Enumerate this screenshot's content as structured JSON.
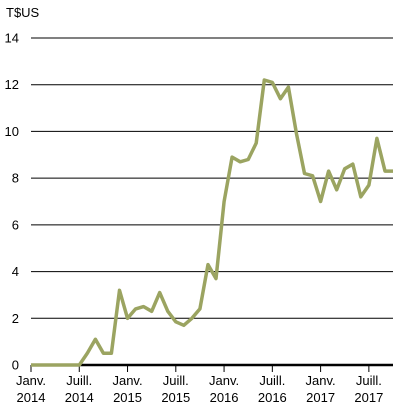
{
  "chart_data": {
    "type": "line",
    "ylabel": "T$US",
    "ylim": [
      0,
      14
    ],
    "yticks": [
      0,
      2,
      4,
      6,
      8,
      10,
      12,
      14
    ],
    "xlim": [
      0,
      45
    ],
    "x_ticks": [
      {
        "x": 0,
        "line1": "Janv.",
        "line2": "2014"
      },
      {
        "x": 6,
        "line1": "Juill.",
        "line2": "2014"
      },
      {
        "x": 12,
        "line1": "Janv.",
        "line2": "2015"
      },
      {
        "x": 18,
        "line1": "Juill.",
        "line2": "2015"
      },
      {
        "x": 24,
        "line1": "Janv.",
        "line2": "2016"
      },
      {
        "x": 30,
        "line1": "Juill.",
        "line2": "2016"
      },
      {
        "x": 36,
        "line1": "Janv.",
        "line2": "2017"
      },
      {
        "x": 42,
        "line1": "Juill.",
        "line2": "2017"
      }
    ],
    "grid": true,
    "line_color": "#9ba461",
    "series": [
      {
        "x": [
          0,
          1,
          2,
          3,
          4,
          5,
          6,
          7,
          8,
          9,
          10,
          11,
          12,
          13,
          14,
          15,
          16,
          17,
          18,
          19,
          20,
          21,
          22,
          23,
          24,
          25,
          26,
          27,
          28,
          29,
          30,
          31,
          32,
          33,
          34,
          35,
          36,
          37,
          38,
          39,
          40,
          41,
          42,
          43,
          44,
          45
        ],
        "values": [
          0,
          0,
          0,
          0,
          0,
          0,
          0,
          0.5,
          1.1,
          0.5,
          0.5,
          3.2,
          2.0,
          2.4,
          2.5,
          2.3,
          3.1,
          2.3,
          1.85,
          1.7,
          2.0,
          2.4,
          4.3,
          3.7,
          7.0,
          8.9,
          8.7,
          8.8,
          9.5,
          12.2,
          12.1,
          11.4,
          11.9,
          9.9,
          8.2,
          8.1,
          7.0,
          8.3,
          7.5,
          8.4,
          8.6,
          7.2,
          7.7,
          9.7,
          8.3,
          8.3
        ]
      }
    ]
  }
}
